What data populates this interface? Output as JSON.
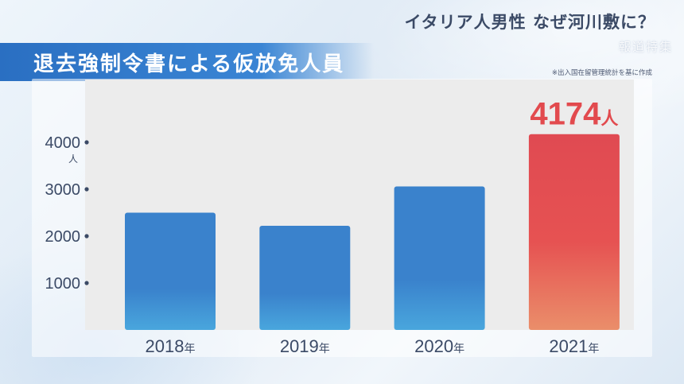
{
  "header": {
    "headline": "イタリア人男性 なぜ河川敷に？",
    "program_logo": "報道特集"
  },
  "title": "退去強制令書による仮放免人員",
  "source_note": "※出入国在留管理統計を基に作成",
  "chart_data": {
    "type": "bar",
    "categories": [
      "2018",
      "2019",
      "2020",
      "2021"
    ],
    "category_unit": "年",
    "values": [
      2500,
      2220,
      3060,
      4174
    ],
    "yticks": [
      "1000",
      "2000",
      "3000",
      "4000"
    ],
    "ytick_values": [
      1000,
      2000,
      3000,
      4000
    ],
    "y_unit": "人",
    "ylim": [
      0,
      5000
    ],
    "highlight": {
      "category": "2021",
      "label": "4174",
      "unit": "人"
    },
    "colors": {
      "bar_top": "#3a82cc",
      "bar_bottom": "#49a6dd",
      "highlight_top": "#e04a52",
      "highlight_mid": "#e65252",
      "highlight_bottom": "#ea8e6a",
      "tick_color": "#3b4a66",
      "plot_background": "#ececec"
    }
  }
}
